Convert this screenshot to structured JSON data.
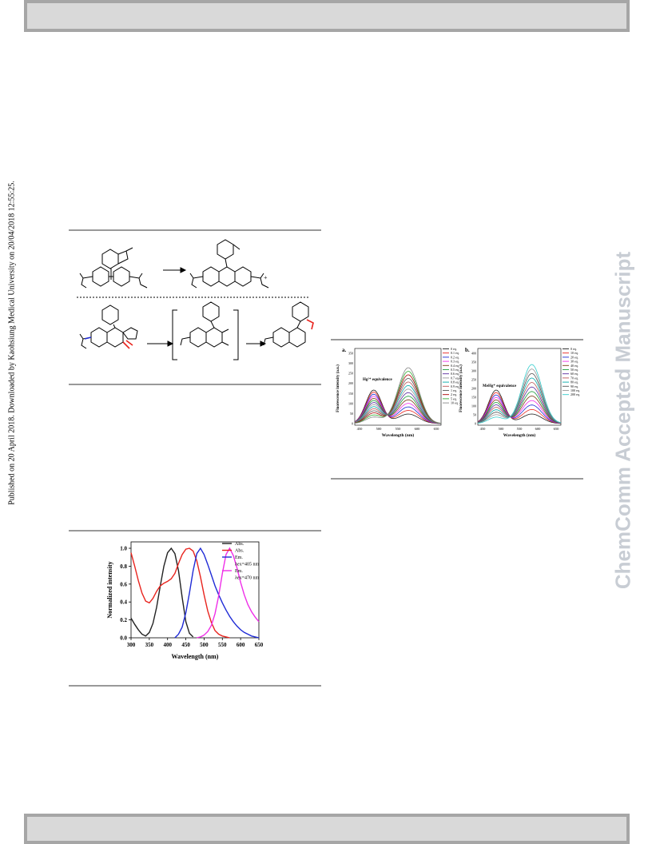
{
  "header_bar": {
    "label": ""
  },
  "footer_bar": {
    "label": ""
  },
  "publication_note": "Published on 20 April 2018. Downloaded by Kaohsiung Medical University on 20/04/2018 12:55:25.",
  "watermark": "ChemComm Accepted Manuscript",
  "scheme": {
    "marker": "+"
  },
  "fluorescence_figure": {
    "panel_a": {
      "label": "a.",
      "inset_label": "Hg²⁺ equivalence",
      "legend": [
        "0 eq.",
        "0.1 eq.",
        "0.2 eq.",
        "0.3 eq.",
        "0.4 eq.",
        "0.5 eq.",
        "0.6 eq.",
        "0.7 eq.",
        "0.8 eq.",
        "0.9 eq.",
        "1 eq.",
        "2 eq.",
        "5 eq.",
        "10 eq."
      ],
      "x_ticks": [
        "450",
        "500",
        "550",
        "600",
        "650"
      ],
      "y_ticks": [
        "0",
        "50",
        "100",
        "150",
        "200",
        "250",
        "300",
        "350"
      ]
    },
    "panel_b": {
      "label": "b.",
      "inset_label": "MeHg⁺ equivalence",
      "legend": [
        "0 eq.",
        "10 eq.",
        "20 eq.",
        "30 eq.",
        "40 eq.",
        "50 eq.",
        "60 eq.",
        "70 eq.",
        "80 eq.",
        "90 eq.",
        "100 eq.",
        "200 eq."
      ],
      "x_ticks": [
        "450",
        "500",
        "550",
        "600",
        "650"
      ],
      "y_ticks": [
        "0",
        "50",
        "100",
        "150",
        "200",
        "250",
        "300",
        "350",
        "400"
      ]
    },
    "xlabel": "Wavelength (nm)",
    "ylabel": "Fluorescence intensity (a.u.)"
  },
  "chart_data": {
    "type": "line",
    "xlabel": "Wavelength (nm)",
    "ylabel": "Normalized intensity",
    "xlim": [
      300,
      650
    ],
    "ylim": [
      0,
      1.0
    ],
    "x_ticks": [
      300,
      350,
      400,
      450,
      500,
      550,
      600,
      650
    ],
    "y_ticks": [
      "0.0",
      "0.2",
      "0.4",
      "0.6",
      "0.8",
      "1.0"
    ],
    "legend_position": "top-right",
    "legend_lines": [
      {
        "text": "Abs.",
        "color": "#222222"
      },
      {
        "text": "Abs.",
        "color": "#e8241e"
      },
      {
        "text": "Em.",
        "color": "#1f2bd6"
      },
      {
        "text": "λex=405 nm",
        "color": ""
      },
      {
        "text": "Em.",
        "color": "#ef2ee8"
      },
      {
        "text": "λex=470 nm",
        "color": ""
      }
    ],
    "series": [
      {
        "name": "Abs.",
        "color": "#222222",
        "x": [
          300,
          310,
          320,
          330,
          340,
          350,
          360,
          370,
          380,
          390,
          400,
          410,
          420,
          430,
          440,
          450,
          460,
          470
        ],
        "y": [
          0.22,
          0.15,
          0.09,
          0.04,
          0.02,
          0.06,
          0.16,
          0.34,
          0.58,
          0.8,
          0.95,
          1.0,
          0.94,
          0.75,
          0.45,
          0.18,
          0.05,
          0.01
        ]
      },
      {
        "name": "Abs.",
        "color": "#e8241e",
        "x": [
          300,
          310,
          320,
          330,
          340,
          350,
          360,
          370,
          380,
          390,
          400,
          410,
          420,
          430,
          440,
          450,
          460,
          470,
          480,
          490,
          500,
          510,
          520,
          530,
          540,
          550,
          560,
          570
        ],
        "y": [
          0.95,
          0.8,
          0.64,
          0.5,
          0.41,
          0.39,
          0.44,
          0.52,
          0.58,
          0.61,
          0.63,
          0.66,
          0.72,
          0.83,
          0.93,
          0.99,
          1.0,
          0.97,
          0.86,
          0.68,
          0.48,
          0.3,
          0.17,
          0.08,
          0.04,
          0.02,
          0.01,
          0.0
        ]
      },
      {
        "name": "Em.",
        "color": "#1f2bd6",
        "x": [
          420,
          430,
          440,
          450,
          460,
          470,
          480,
          490,
          500,
          510,
          520,
          530,
          540,
          550,
          560,
          570,
          580,
          590,
          600,
          610,
          620,
          630,
          640,
          650
        ],
        "y": [
          0.0,
          0.04,
          0.12,
          0.28,
          0.5,
          0.75,
          0.94,
          1.0,
          0.93,
          0.82,
          0.7,
          0.58,
          0.48,
          0.39,
          0.31,
          0.24,
          0.18,
          0.13,
          0.09,
          0.06,
          0.04,
          0.02,
          0.01,
          0.0
        ]
      },
      {
        "name": "Em.",
        "color": "#ef2ee8",
        "x": [
          480,
          490,
          500,
          510,
          520,
          530,
          540,
          550,
          560,
          570,
          580,
          590,
          600,
          610,
          620,
          630,
          640,
          650
        ],
        "y": [
          0.0,
          0.01,
          0.03,
          0.07,
          0.14,
          0.27,
          0.47,
          0.72,
          0.93,
          1.0,
          0.92,
          0.78,
          0.62,
          0.48,
          0.37,
          0.29,
          0.23,
          0.18
        ]
      }
    ]
  }
}
